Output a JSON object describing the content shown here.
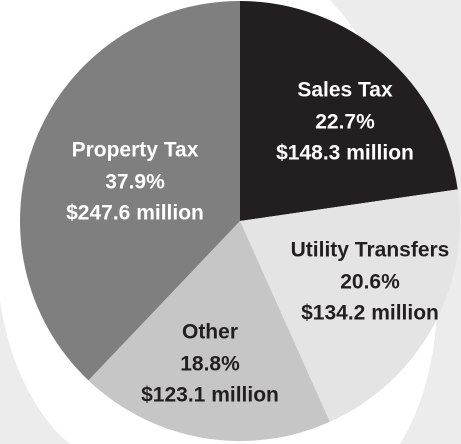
{
  "chart_data": {
    "type": "pie",
    "categories": [
      "Sales Tax",
      "Utility Transfers",
      "Other",
      "Property Tax"
    ],
    "values": [
      22.7,
      20.6,
      18.8,
      37.9
    ],
    "value_labels": [
      "22.7%",
      "20.6%",
      "18.8%",
      "37.9%"
    ],
    "amounts": [
      148.3,
      134.2,
      123.1,
      247.6
    ],
    "amount_labels": [
      "$148.3 million",
      "$134.2 million",
      "$123.1 million",
      "$247.6 million"
    ],
    "colors": [
      "#231f20",
      "#e4e4e4",
      "#c6c6c6",
      "#7f7f7f"
    ],
    "label_colors": [
      "#ffffff",
      "#231f20",
      "#231f20",
      "#ffffff"
    ]
  }
}
